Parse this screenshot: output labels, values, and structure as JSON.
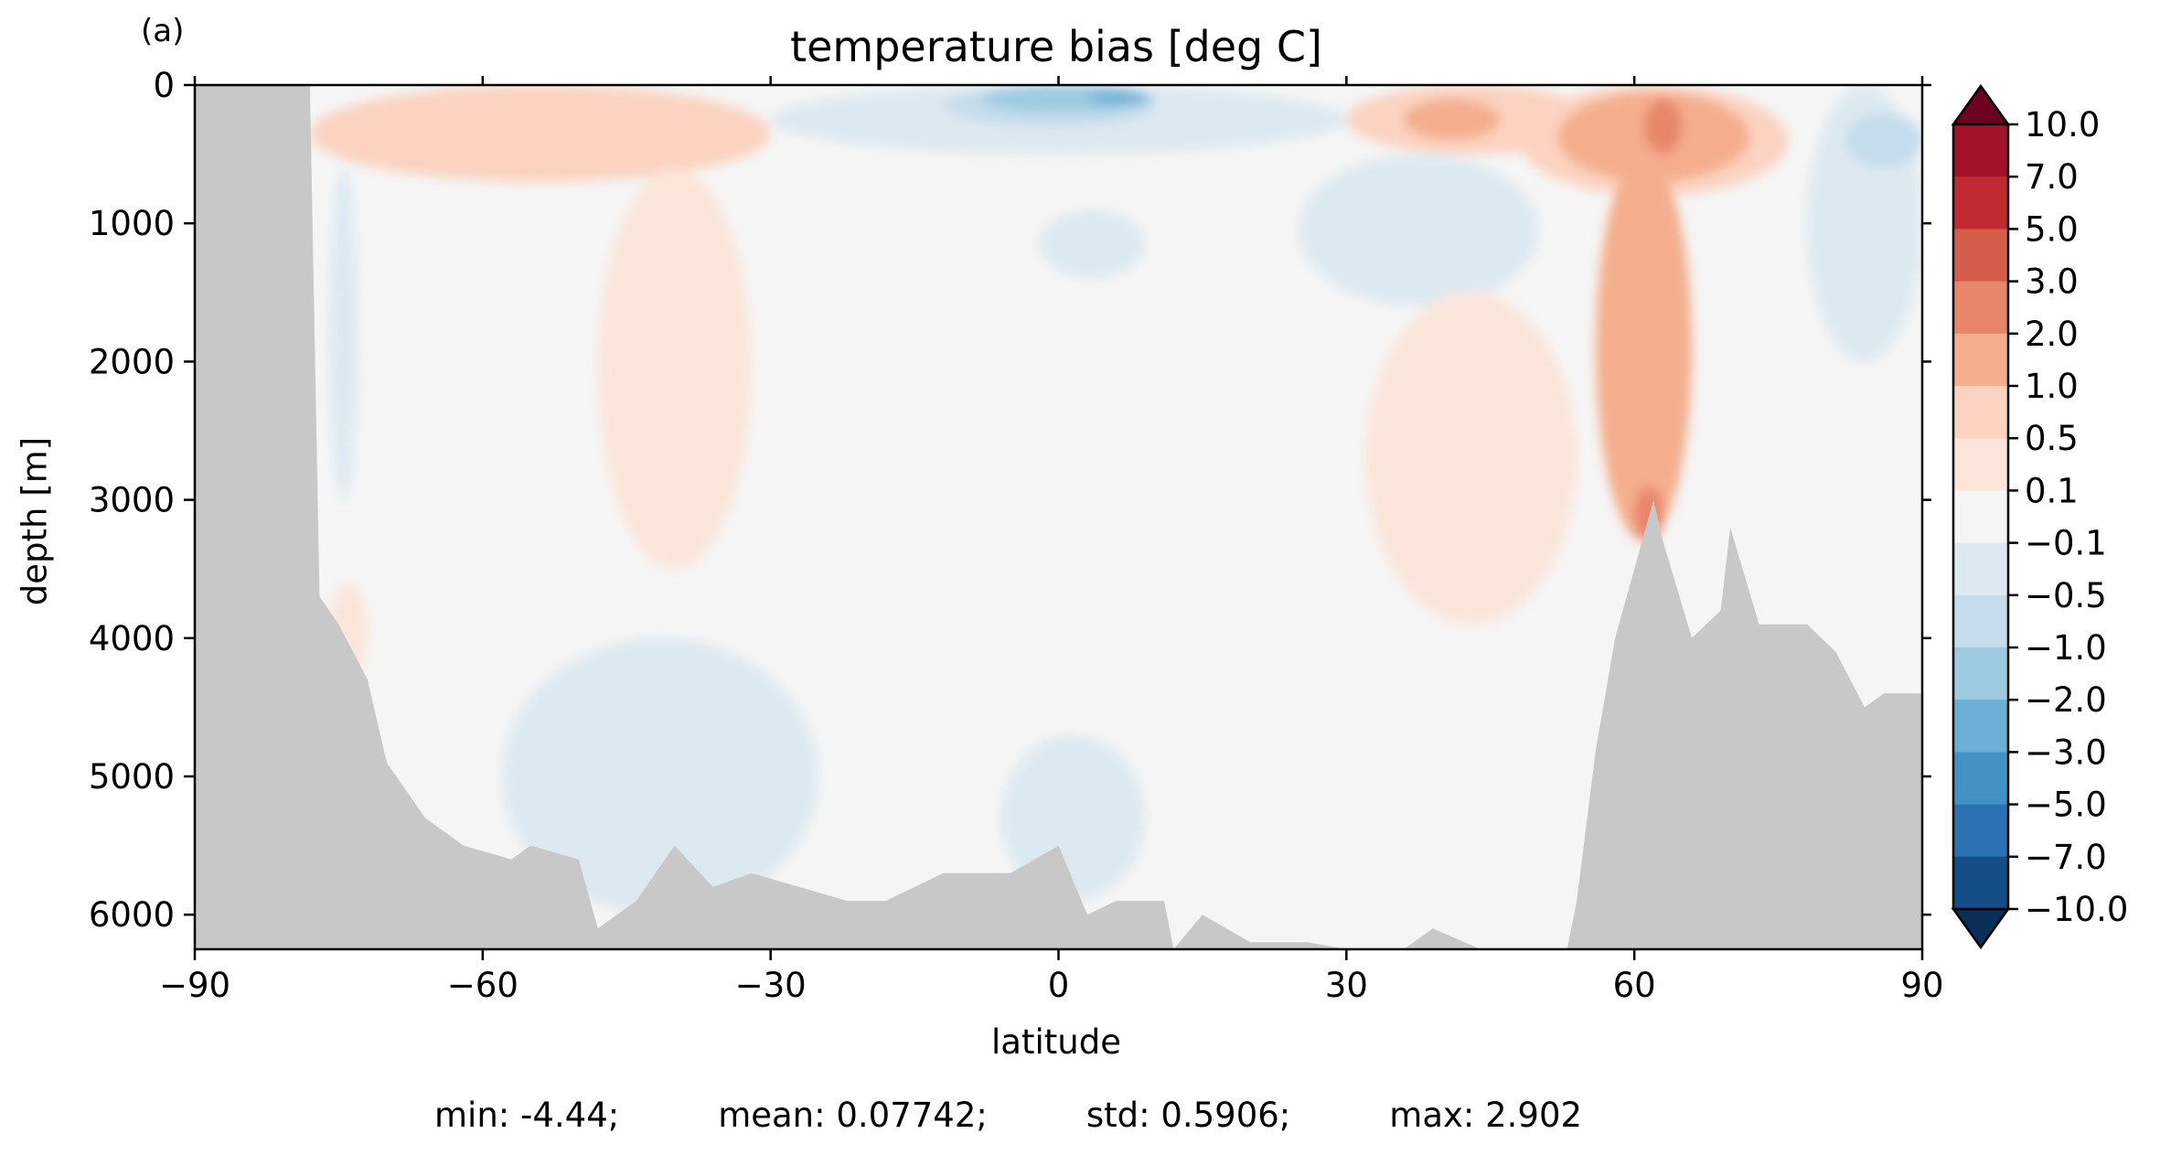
{
  "panel_label": "(a)",
  "stats": {
    "min": "min: -4.44;",
    "mean": "mean: 0.07742;",
    "std": "std: 0.5906;",
    "max": "max: 2.902"
  },
  "chart_data": {
    "type": "heatmap",
    "title": "temperature bias [deg C]",
    "xlabel": "latitude",
    "ylabel": "depth [m]",
    "xlim": [
      -90,
      90
    ],
    "ylim": [
      6250,
      0
    ],
    "y_inverted": true,
    "xticks": [
      -90,
      -60,
      -30,
      0,
      30,
      60,
      90
    ],
    "xtick_labels": [
      "−90",
      "−60",
      "−30",
      "0",
      "30",
      "60",
      "90"
    ],
    "yticks": [
      0,
      1000,
      2000,
      3000,
      4000,
      5000,
      6000
    ],
    "ytick_labels": [
      "0",
      "1000",
      "2000",
      "3000",
      "4000",
      "5000",
      "6000"
    ],
    "grid": false,
    "colorbar": {
      "label_text": [
        "10.0",
        "7.0",
        "5.0",
        "3.0",
        "2.0",
        "1.0",
        "0.5",
        "0.1",
        "−0.1",
        "−0.5",
        "−1.0",
        "−2.0",
        "−3.0",
        "−5.0",
        "−7.0",
        "−10.0"
      ],
      "levels": [
        10,
        7,
        5,
        3,
        2,
        1,
        0.5,
        0.1,
        -0.1,
        -0.5,
        -1,
        -2,
        -3,
        -5,
        -7,
        -10
      ],
      "colors_top_to_bottom": [
        "#a2122b",
        "#c12a31",
        "#d55d4b",
        "#e8866b",
        "#f4ae8d",
        "#fbd3c0",
        "#fbe5da",
        "#f5f5f5",
        "#dde9f1",
        "#c5dcec",
        "#9ccbe1",
        "#6baed6",
        "#4292c6",
        "#2c71b1",
        "#144d88"
      ],
      "extend_max_color": "#6d0121",
      "extend_min_color": "#0a2f59"
    },
    "land_color": "#c8c8c8",
    "background_color": "#f5f5f5",
    "bathymetry_depth_by_latitude": [
      [
        -90,
        0
      ],
      [
        -78,
        0
      ],
      [
        -77,
        3700
      ],
      [
        -75,
        3900
      ],
      [
        -72,
        4300
      ],
      [
        -70,
        4900
      ],
      [
        -66,
        5300
      ],
      [
        -62,
        5500
      ],
      [
        -57,
        5600
      ],
      [
        -55,
        5500
      ],
      [
        -50,
        5600
      ],
      [
        -48,
        6100
      ],
      [
        -44,
        5900
      ],
      [
        -40,
        5500
      ],
      [
        -36,
        5800
      ],
      [
        -32,
        5700
      ],
      [
        -27,
        5800
      ],
      [
        -22,
        5900
      ],
      [
        -18,
        5900
      ],
      [
        -12,
        5700
      ],
      [
        -5,
        5700
      ],
      [
        0,
        5500
      ],
      [
        3,
        6000
      ],
      [
        6,
        5900
      ],
      [
        11,
        5900
      ],
      [
        12,
        6250
      ],
      [
        15,
        6000
      ],
      [
        20,
        6200
      ],
      [
        26,
        6200
      ],
      [
        30,
        6250
      ],
      [
        36,
        6250
      ],
      [
        39,
        6100
      ],
      [
        44,
        6250
      ],
      [
        50,
        6250
      ],
      [
        53,
        6250
      ],
      [
        54,
        5900
      ],
      [
        56,
        4800
      ],
      [
        58,
        4000
      ],
      [
        60,
        3500
      ],
      [
        62,
        3000
      ],
      [
        63,
        3300
      ],
      [
        66,
        4000
      ],
      [
        69,
        3800
      ],
      [
        70,
        3200
      ],
      [
        73,
        3900
      ],
      [
        78,
        3900
      ],
      [
        81,
        4100
      ],
      [
        84,
        4500
      ],
      [
        86,
        4400
      ],
      [
        90,
        4400
      ]
    ],
    "bias_regions_deg_c": [
      {
        "level": 1.0,
        "lat": [
          -62,
          -47
        ],
        "depth": [
          50,
          500
        ]
      },
      {
        "level": 1.0,
        "lat": [
          -42,
          -36
        ],
        "depth": [
          150,
          550
        ]
      },
      {
        "level": 0.5,
        "lat": [
          -78,
          -30
        ],
        "depth": [
          0,
          700
        ]
      },
      {
        "level": 0.1,
        "lat": [
          -48,
          -32
        ],
        "depth": [
          600,
          3500
        ]
      },
      {
        "level": 0.1,
        "lat": [
          -76,
          -72
        ],
        "depth": [
          3600,
          4300
        ]
      },
      {
        "level": -0.1,
        "lat": [
          -30,
          30
        ],
        "depth": [
          0,
          500
        ]
      },
      {
        "level": -0.5,
        "lat": [
          -12,
          10
        ],
        "depth": [
          0,
          300
        ]
      },
      {
        "level": -1.0,
        "lat": [
          -8,
          10
        ],
        "depth": [
          0,
          200
        ]
      },
      {
        "level": -2.0,
        "lat": [
          3,
          9
        ],
        "depth": [
          50,
          130
        ]
      },
      {
        "level": -0.1,
        "lat": [
          -2,
          9
        ],
        "depth": [
          900,
          1400
        ]
      },
      {
        "level": -0.1,
        "lat": [
          25,
          50
        ],
        "depth": [
          500,
          1600
        ]
      },
      {
        "level": -0.1,
        "lat": [
          -58,
          -25
        ],
        "depth": [
          4000,
          6000
        ]
      },
      {
        "level": -0.1,
        "lat": [
          -6,
          9
        ],
        "depth": [
          4700,
          5900
        ]
      },
      {
        "level": -0.1,
        "lat": [
          -76,
          -73
        ],
        "depth": [
          600,
          3000
        ]
      },
      {
        "level": 0.1,
        "lat": [
          32,
          54
        ],
        "depth": [
          1500,
          3900
        ]
      },
      {
        "level": 0.5,
        "lat": [
          30,
          56
        ],
        "depth": [
          0,
          500
        ]
      },
      {
        "level": 1.0,
        "lat": [
          36,
          46
        ],
        "depth": [
          100,
          400
        ]
      },
      {
        "level": 0.5,
        "lat": [
          48,
          76
        ],
        "depth": [
          0,
          800
        ]
      },
      {
        "level": 1.0,
        "lat": [
          52,
          72
        ],
        "depth": [
          50,
          700
        ]
      },
      {
        "level": 1.0,
        "lat": [
          56,
          66
        ],
        "depth": [
          500,
          3300
        ]
      },
      {
        "level": 2.0,
        "lat": [
          61,
          65
        ],
        "depth": [
          100,
          500
        ]
      },
      {
        "level": 2.0,
        "lat": [
          60,
          63
        ],
        "depth": [
          2900,
          3300
        ]
      },
      {
        "level": -0.1,
        "lat": [
          78,
          90
        ],
        "depth": [
          0,
          2000
        ]
      },
      {
        "level": -0.5,
        "lat": [
          82,
          90
        ],
        "depth": [
          200,
          600
        ]
      }
    ]
  }
}
